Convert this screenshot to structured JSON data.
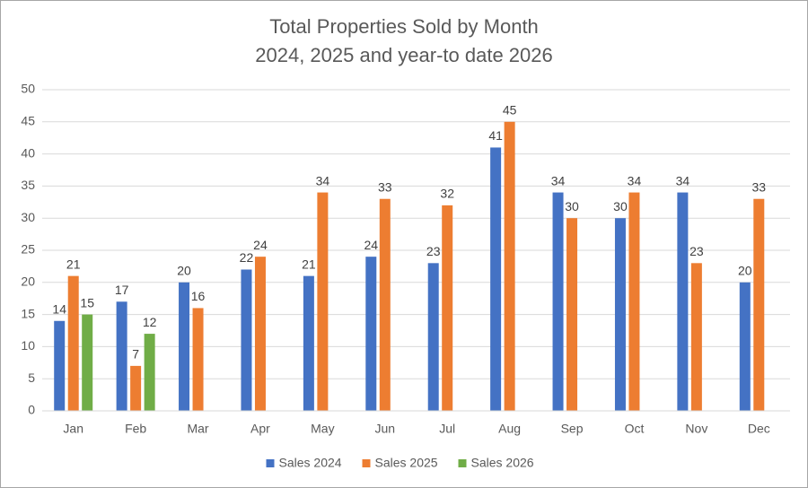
{
  "chart_data": {
    "type": "bar",
    "title": "Total Properties Sold by Month",
    "subtitle": "2024, 2025 and year-to date 2026",
    "categories": [
      "Jan",
      "Feb",
      "Mar",
      "Apr",
      "May",
      "Jun",
      "Jul",
      "Aug",
      "Sep",
      "Oct",
      "Nov",
      "Dec"
    ],
    "series": [
      {
        "name": "Sales 2024",
        "color": "#4472c4",
        "values": [
          14,
          17,
          20,
          22,
          21,
          24,
          23,
          41,
          34,
          30,
          34,
          20
        ]
      },
      {
        "name": "Sales 2025",
        "color": "#ed7d31",
        "values": [
          21,
          7,
          16,
          24,
          34,
          33,
          32,
          45,
          30,
          34,
          23,
          33
        ]
      },
      {
        "name": "Sales 2026",
        "color": "#70ad47",
        "values": [
          15,
          12,
          null,
          null,
          null,
          null,
          null,
          null,
          null,
          null,
          null,
          null
        ]
      }
    ],
    "ylim": [
      0,
      50
    ],
    "yticks": [
      0,
      5,
      10,
      15,
      20,
      25,
      30,
      35,
      40,
      45,
      50
    ],
    "grid": true,
    "legend": "bottom"
  }
}
